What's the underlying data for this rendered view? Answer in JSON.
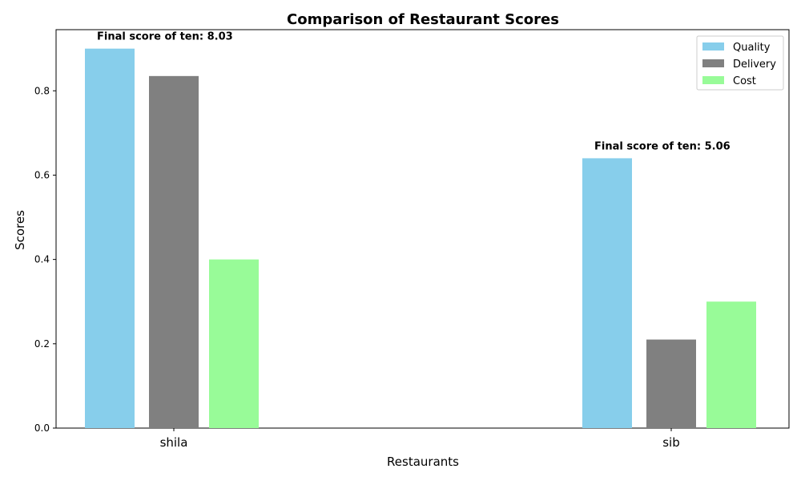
{
  "chart_data": {
    "type": "bar",
    "title": "Comparison of Restaurant Scores",
    "xlabel": "Restaurants",
    "ylabel": "Scores",
    "categories": [
      "shila",
      "sib"
    ],
    "series": [
      {
        "name": "Quality",
        "values": [
          0.9,
          0.64
        ],
        "color": "#87CEEB"
      },
      {
        "name": "Delivery",
        "values": [
          0.835,
          0.21
        ],
        "color": "#808080"
      },
      {
        "name": "Cost",
        "values": [
          0.4,
          0.3
        ],
        "color": "#98FB98"
      }
    ],
    "annotations": [
      "Final score of ten: 8.03",
      "Final score of ten: 5.06"
    ],
    "ylim": [
      0,
      0.945
    ],
    "yticks": [
      "0.0",
      "0.2",
      "0.4",
      "0.6",
      "0.8"
    ],
    "ytick_values": [
      0.0,
      0.2,
      0.4,
      0.6,
      0.8
    ],
    "legend": "top-right",
    "grid": false
  }
}
